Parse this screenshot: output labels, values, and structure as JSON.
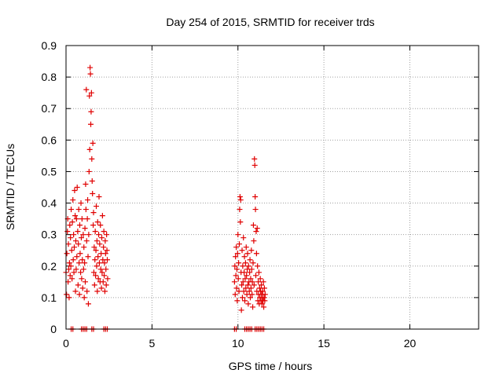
{
  "chart_data": {
    "type": "scatter",
    "title": "Day 254 of 2015, SRMTID for receiver trds",
    "xlabel": "GPS time / hours",
    "ylabel": "SRMTID / TECUs",
    "xlim": [
      0,
      24
    ],
    "ylim": [
      0,
      0.9
    ],
    "x_ticks": [
      0,
      5,
      10,
      15,
      20
    ],
    "x_tick_labels": [
      "0",
      "5",
      "10",
      "15",
      "20"
    ],
    "y_ticks": [
      0,
      0.1,
      0.2,
      0.3,
      0.4,
      0.5,
      0.6,
      0.7,
      0.8,
      0.9
    ],
    "y_tick_labels": [
      "0",
      "0.1",
      "0.2",
      "0.3",
      "0.4",
      "0.5",
      "0.6",
      "0.7",
      "0.8",
      "0.9"
    ],
    "grid": true,
    "marker": "plus",
    "color": "#e00000",
    "series": [
      {
        "name": "SRMTID",
        "points": [
          [
            0.0,
            0.18
          ],
          [
            0.03,
            0.11
          ],
          [
            0.05,
            0.24
          ],
          [
            0.08,
            0.31
          ],
          [
            0.1,
            0.35
          ],
          [
            0.12,
            0.15
          ],
          [
            0.14,
            0.27
          ],
          [
            0.16,
            0.19
          ],
          [
            0.18,
            0.1
          ],
          [
            0.2,
            0.21
          ],
          [
            0.22,
            0.33
          ],
          [
            0.24,
            0.17
          ],
          [
            0.26,
            0.29
          ],
          [
            0.28,
            0.2
          ],
          [
            0.3,
            0.38
          ],
          [
            0.33,
            0.25
          ],
          [
            0.35,
            0.16
          ],
          [
            0.37,
            0.34
          ],
          [
            0.4,
            0.41
          ],
          [
            0.42,
            0.22
          ],
          [
            0.44,
            0.3
          ],
          [
            0.46,
            0.18
          ],
          [
            0.48,
            0.26
          ],
          [
            0.5,
            0.44
          ],
          [
            0.53,
            0.36
          ],
          [
            0.55,
            0.12
          ],
          [
            0.57,
            0.28
          ],
          [
            0.59,
            0.19
          ],
          [
            0.61,
            0.35
          ],
          [
            0.63,
            0.23
          ],
          [
            0.65,
            0.45
          ],
          [
            0.68,
            0.31
          ],
          [
            0.7,
            0.14
          ],
          [
            0.72,
            0.27
          ],
          [
            0.74,
            0.38
          ],
          [
            0.76,
            0.21
          ],
          [
            0.78,
            0.11
          ],
          [
            0.8,
            0.33
          ],
          [
            0.82,
            0.24
          ],
          [
            0.85,
            0.18
          ],
          [
            0.87,
            0.4
          ],
          [
            0.89,
            0.29
          ],
          [
            0.91,
            0.16
          ],
          [
            0.93,
            0.35
          ],
          [
            0.95,
            0.22
          ],
          [
            0.97,
            0.13
          ],
          [
            1.0,
            0.3
          ],
          [
            1.02,
            0.19
          ],
          [
            1.04,
            0.26
          ],
          [
            1.06,
            0.1
          ],
          [
            1.08,
            0.21
          ],
          [
            1.1,
            0.32
          ],
          [
            1.12,
            0.15
          ],
          [
            1.14,
            0.46
          ],
          [
            1.16,
            0.38
          ],
          [
            1.18,
            0.76
          ],
          [
            1.2,
            0.28
          ],
          [
            1.22,
            0.12
          ],
          [
            1.24,
            0.35
          ],
          [
            1.26,
            0.41
          ],
          [
            1.28,
            0.23
          ],
          [
            1.3,
            0.08
          ],
          [
            1.32,
            0.3
          ],
          [
            1.34,
            0.5
          ],
          [
            1.36,
            0.74
          ],
          [
            1.38,
            0.57
          ],
          [
            1.4,
            0.83
          ],
          [
            1.42,
            0.81
          ],
          [
            1.44,
            0.65
          ],
          [
            1.46,
            0.69
          ],
          [
            1.48,
            0.75
          ],
          [
            1.5,
            0.54
          ],
          [
            1.52,
            0.47
          ],
          [
            1.54,
            0.43
          ],
          [
            1.56,
            0.59
          ],
          [
            1.58,
            0.33
          ],
          [
            1.6,
            0.37
          ],
          [
            1.62,
            0.18
          ],
          [
            1.64,
            0.26
          ],
          [
            1.66,
            0.14
          ],
          [
            1.68,
            0.22
          ],
          [
            1.7,
            0.31
          ],
          [
            1.72,
            0.17
          ],
          [
            1.74,
            0.25
          ],
          [
            1.76,
            0.39
          ],
          [
            1.78,
            0.2
          ],
          [
            1.8,
            0.28
          ],
          [
            1.82,
            0.12
          ],
          [
            1.84,
            0.34
          ],
          [
            1.86,
            0.23
          ],
          [
            1.88,
            0.16
          ],
          [
            1.9,
            0.3
          ],
          [
            1.92,
            0.42
          ],
          [
            1.94,
            0.21
          ],
          [
            1.96,
            0.27
          ],
          [
            1.98,
            0.15
          ],
          [
            2.0,
            0.33
          ],
          [
            2.02,
            0.19
          ],
          [
            2.04,
            0.24
          ],
          [
            2.06,
            0.13
          ],
          [
            2.08,
            0.29
          ],
          [
            2.1,
            0.18
          ],
          [
            2.12,
            0.36
          ],
          [
            2.14,
            0.22
          ],
          [
            2.16,
            0.15
          ],
          [
            2.18,
            0.26
          ],
          [
            2.2,
            0.31
          ],
          [
            2.22,
            0.17
          ],
          [
            2.24,
            0.21
          ],
          [
            2.26,
            0.12
          ],
          [
            2.28,
            0.28
          ],
          [
            2.3,
            0.24
          ],
          [
            2.32,
            0.19
          ],
          [
            2.34,
            0.14
          ],
          [
            2.36,
            0.3
          ],
          [
            2.38,
            0.25
          ],
          [
            2.4,
            0.22
          ],
          [
            2.42,
            0.16
          ],
          [
            0.3,
            0.0
          ],
          [
            0.4,
            0.0
          ],
          [
            0.9,
            0.0
          ],
          [
            1.0,
            0.0
          ],
          [
            1.1,
            0.0
          ],
          [
            1.2,
            0.0
          ],
          [
            1.5,
            0.0
          ],
          [
            1.6,
            0.0
          ],
          [
            2.2,
            0.0
          ],
          [
            2.3,
            0.0
          ],
          [
            2.4,
            0.0
          ],
          [
            9.8,
            0.15
          ],
          [
            9.82,
            0.2
          ],
          [
            9.84,
            0.11
          ],
          [
            9.86,
            0.23
          ],
          [
            9.88,
            0.17
          ],
          [
            9.9,
            0.26
          ],
          [
            9.92,
            0.13
          ],
          [
            9.94,
            0.19
          ],
          [
            9.96,
            0.09
          ],
          [
            9.98,
            0.24
          ],
          [
            10.0,
            0.3
          ],
          [
            10.02,
            0.16
          ],
          [
            10.04,
            0.21
          ],
          [
            10.06,
            0.12
          ],
          [
            10.08,
            0.27
          ],
          [
            10.1,
            0.38
          ],
          [
            10.12,
            0.42
          ],
          [
            10.14,
            0.34
          ],
          [
            10.16,
            0.41
          ],
          [
            10.18,
            0.18
          ],
          [
            10.2,
            0.06
          ],
          [
            10.22,
            0.14
          ],
          [
            10.24,
            0.25
          ],
          [
            10.26,
            0.1
          ],
          [
            10.28,
            0.2
          ],
          [
            10.3,
            0.15
          ],
          [
            10.32,
            0.29
          ],
          [
            10.34,
            0.12
          ],
          [
            10.36,
            0.18
          ],
          [
            10.38,
            0.23
          ],
          [
            10.4,
            0.09
          ],
          [
            10.42,
            0.16
          ],
          [
            10.44,
            0.21
          ],
          [
            10.46,
            0.13
          ],
          [
            10.48,
            0.26
          ],
          [
            10.5,
            0.17
          ],
          [
            10.52,
            0.11
          ],
          [
            10.54,
            0.19
          ],
          [
            10.56,
            0.24
          ],
          [
            10.58,
            0.14
          ],
          [
            10.6,
            0.08
          ],
          [
            10.62,
            0.2
          ],
          [
            10.64,
            0.15
          ],
          [
            10.66,
            0.12
          ],
          [
            10.68,
            0.18
          ],
          [
            10.7,
            0.22
          ],
          [
            10.72,
            0.1
          ],
          [
            10.74,
            0.16
          ],
          [
            10.76,
            0.13
          ],
          [
            10.78,
            0.25
          ],
          [
            10.8,
            0.19
          ],
          [
            10.82,
            0.11
          ],
          [
            10.84,
            0.15
          ],
          [
            10.86,
            0.07
          ],
          [
            10.88,
            0.21
          ],
          [
            10.9,
            0.33
          ],
          [
            10.92,
            0.28
          ],
          [
            10.94,
            0.14
          ],
          [
            10.96,
            0.54
          ],
          [
            10.98,
            0.52
          ],
          [
            11.0,
            0.42
          ],
          [
            11.02,
            0.38
          ],
          [
            11.04,
            0.17
          ],
          [
            11.06,
            0.31
          ],
          [
            11.08,
            0.24
          ],
          [
            11.1,
            0.12
          ],
          [
            11.12,
            0.32
          ],
          [
            11.14,
            0.2
          ],
          [
            11.16,
            0.09
          ],
          [
            11.18,
            0.15
          ],
          [
            11.2,
            0.11
          ],
          [
            11.22,
            0.18
          ],
          [
            11.24,
            0.08
          ],
          [
            11.26,
            0.13
          ],
          [
            11.28,
            0.1
          ],
          [
            11.3,
            0.16
          ],
          [
            11.32,
            0.12
          ],
          [
            11.34,
            0.09
          ],
          [
            11.36,
            0.14
          ],
          [
            11.38,
            0.11
          ],
          [
            11.4,
            0.08
          ],
          [
            11.42,
            0.1
          ],
          [
            11.44,
            0.12
          ],
          [
            11.46,
            0.09
          ],
          [
            11.48,
            0.15
          ],
          [
            11.5,
            0.07
          ],
          [
            11.52,
            0.1
          ],
          [
            11.54,
            0.13
          ],
          [
            11.56,
            0.09
          ],
          [
            11.58,
            0.11
          ],
          [
            9.8,
            0.0
          ],
          [
            9.9,
            0.0
          ],
          [
            10.4,
            0.0
          ],
          [
            10.5,
            0.0
          ],
          [
            10.6,
            0.0
          ],
          [
            10.7,
            0.0
          ],
          [
            10.8,
            0.0
          ],
          [
            11.0,
            0.0
          ],
          [
            11.1,
            0.0
          ],
          [
            11.2,
            0.0
          ],
          [
            11.3,
            0.0
          ],
          [
            11.4,
            0.0
          ],
          [
            11.5,
            0.0
          ]
        ]
      }
    ]
  }
}
